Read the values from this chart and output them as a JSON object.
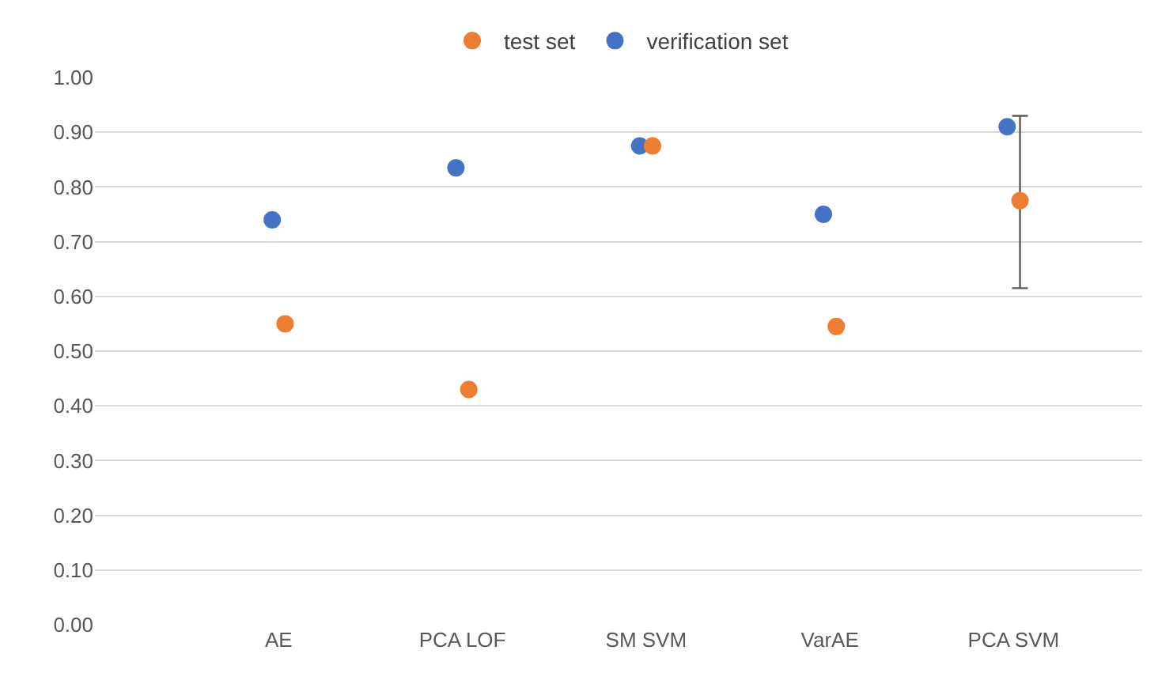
{
  "chart_data": {
    "type": "scatter",
    "categories": [
      "AE",
      "PCA LOF",
      "SM SVM",
      "VarAE",
      "PCA SVM"
    ],
    "series": [
      {
        "name": "test set",
        "color": "#ed7d31",
        "values": [
          0.55,
          0.43,
          0.875,
          0.545,
          0.775
        ],
        "errors": [
          null,
          null,
          null,
          null,
          [
            0.615,
            0.93
          ]
        ]
      },
      {
        "name": "verification set",
        "color": "#4472c4",
        "values": [
          0.74,
          0.835,
          0.875,
          0.75,
          0.91
        ]
      }
    ],
    "ylim": [
      0,
      1
    ],
    "yticks": [
      {
        "value": 0,
        "label": "0.00"
      },
      {
        "value": 0.1,
        "label": "0.10"
      },
      {
        "value": 0.2,
        "label": "0.20"
      },
      {
        "value": 0.3,
        "label": "0.30"
      },
      {
        "value": 0.4,
        "label": "0.40"
      },
      {
        "value": 0.5,
        "label": "0.50"
      },
      {
        "value": 0.6,
        "label": "0.60"
      },
      {
        "value": 0.7,
        "label": "0.70"
      },
      {
        "value": 0.8,
        "label": "0.80"
      },
      {
        "value": 0.9,
        "label": "0.90"
      },
      {
        "value": 1,
        "label": "1.00"
      }
    ],
    "grid": "y",
    "legend": "top",
    "marker": "circle"
  }
}
